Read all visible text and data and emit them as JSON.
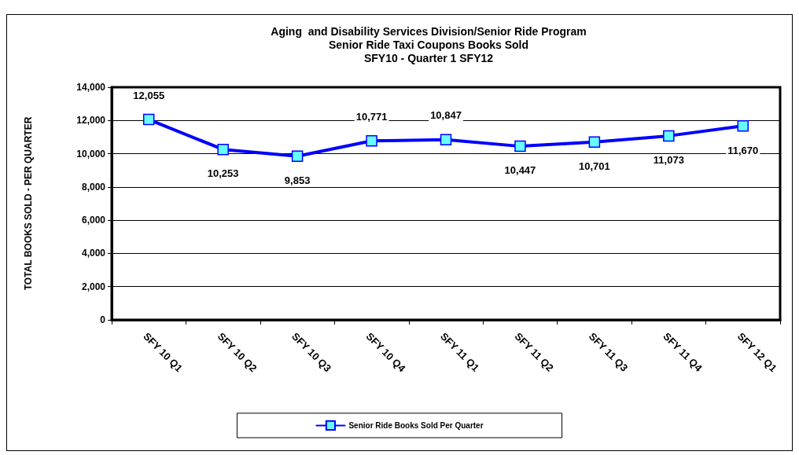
{
  "chart_data": {
    "type": "line",
    "title": "Aging  and Disability Services Division/Senior Ride Program\nSenior Ride Taxi Coupons Books Sold\nSFY10 - Quarter 1 SFY12",
    "ylabel": "TOTAL BOOKS SOLD - PER QUARTER",
    "categories": [
      "SFY 10 Q1",
      "SFY 10 Q2",
      "SFY 10 Q3",
      "SFY 10 Q4",
      "SFY 11 Q1",
      "SFY 11 Q2",
      "SFY 11 Q3",
      "SFY 11 Q4",
      "SFY 12 Q1"
    ],
    "series": [
      {
        "name": "Senior Ride Books Sold Per Quarter",
        "color": "#0000ff",
        "values": [
          12055,
          10253,
          9853,
          10771,
          10847,
          10447,
          10701,
          11073,
          11670
        ],
        "value_labels": [
          "12,055",
          "10,253",
          "9,853",
          "10,771",
          "10,847",
          "10,447",
          "10,701",
          "11,073",
          "11,670"
        ]
      }
    ],
    "ylim": [
      0,
      14000
    ],
    "yticks": [
      0,
      {
        "value": 2000,
        "label": "2,000"
      },
      {
        "value": 4000,
        "label": "4,000"
      },
      {
        "value": 6000,
        "label": "6,000"
      },
      {
        "value": 8000,
        "label": "8,000"
      },
      {
        "value": 10000,
        "label": "10,000"
      },
      {
        "value": 12000,
        "label": "12,000"
      },
      {
        "value": 14000,
        "label": "14,000"
      }
    ],
    "grid": "y",
    "legend": "bottom",
    "marker": "square",
    "line_style": "solid"
  }
}
